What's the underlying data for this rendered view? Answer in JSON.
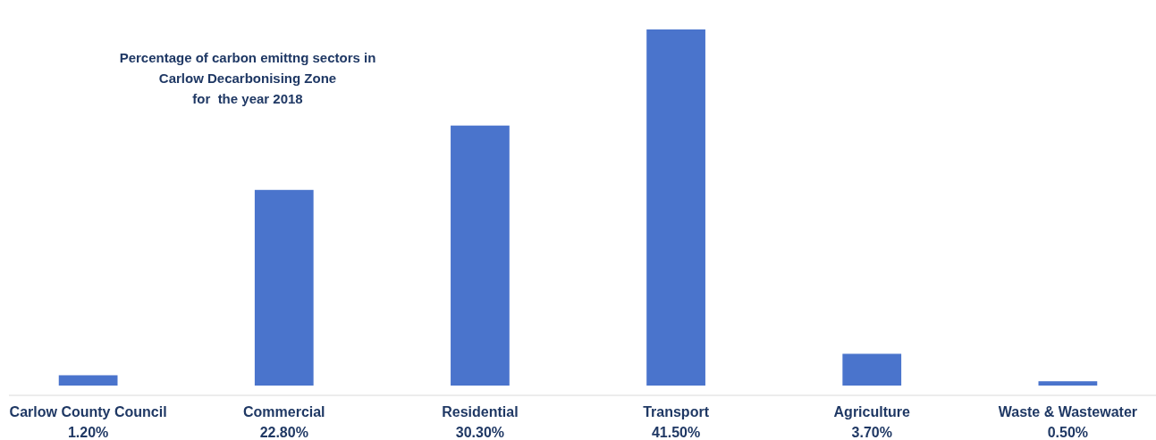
{
  "chart_data": {
    "type": "bar",
    "title": "Percentage of carbon emittng sectors in\nCarlow Decarbonising Zone\nfor  the year 2018",
    "categories": [
      "Carlow County Council",
      "Commercial",
      "Residential",
      "Transport",
      "Agriculture",
      "Waste & Wastewater"
    ],
    "values": [
      1.2,
      22.8,
      30.3,
      41.5,
      3.7,
      0.5
    ],
    "value_labels": [
      "1.20%",
      "22.80%",
      "30.30%",
      "41.50%",
      "3.70%",
      "0.50%"
    ],
    "color": "#4a74cc"
  }
}
